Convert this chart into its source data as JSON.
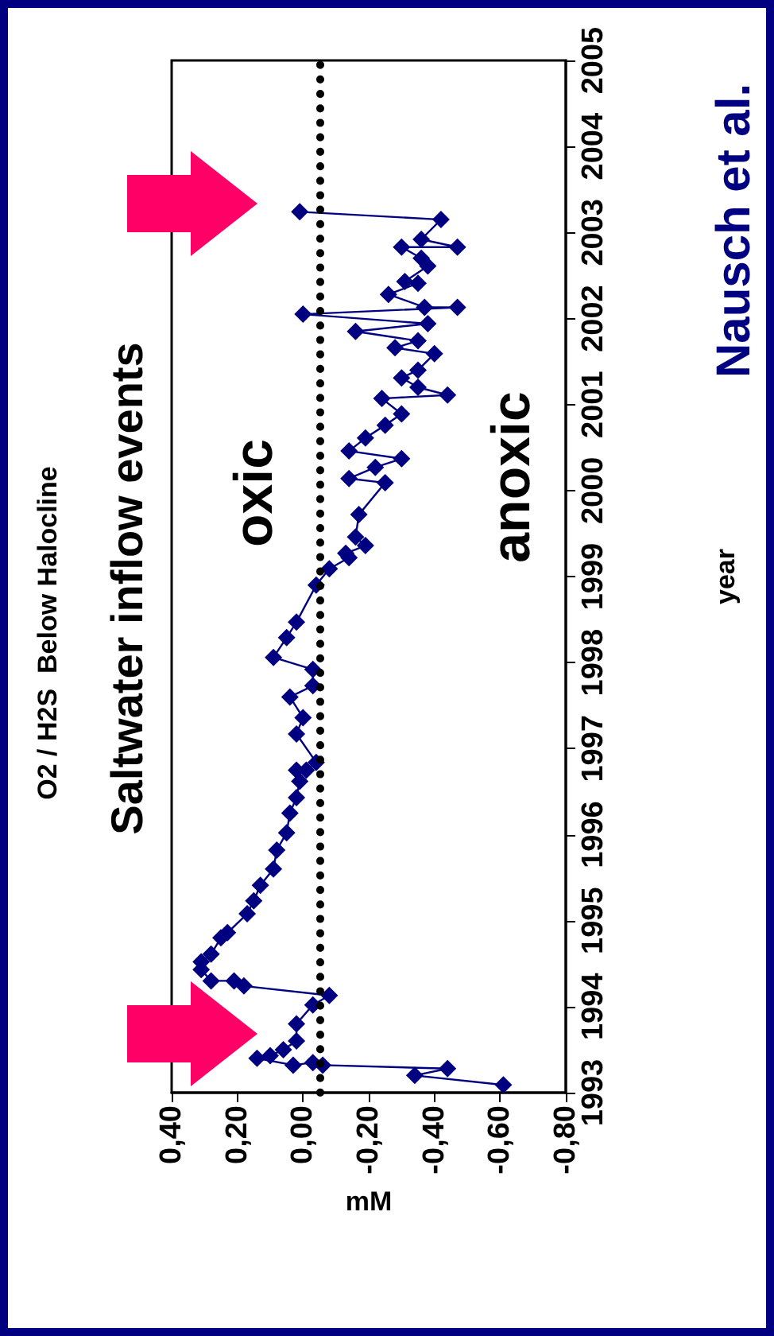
{
  "chart_data": {
    "type": "line",
    "title": "O2 / H2S  Below Halocline",
    "xlabel": "mM",
    "ylabel": "year",
    "annotations": [
      "Saltwater inflow events",
      "oxic",
      "anoxic",
      "Nausch et al."
    ],
    "ylim": [
      1993,
      2005
    ],
    "yticks": [
      1993,
      1994,
      1995,
      1996,
      1997,
      1998,
      1999,
      2000,
      2001,
      2002,
      2003,
      2004,
      2005
    ],
    "xlim": [
      0.4,
      -0.8
    ],
    "xticks": [
      {
        "value": 0.4,
        "label": "0,40"
      },
      {
        "value": 0.2,
        "label": "0,20"
      },
      {
        "value": 0,
        "label": "0,00"
      },
      {
        "value": -0.2,
        "label": "-0,20"
      },
      {
        "value": -0.4,
        "label": "-0,40"
      },
      {
        "value": -0.6,
        "label": "-0,60"
      },
      {
        "value": -0.8,
        "label": "-0,80"
      }
    ],
    "marker": "diamond",
    "grid": false,
    "ref_lines": [
      {
        "axis": "x",
        "value": -0.05,
        "color": "#000000",
        "line_style": "dotted"
      }
    ],
    "series": [
      {
        "color": "#000080",
        "values": [
          1993.09,
          1993.2,
          1993.28,
          1993.32,
          1993.35,
          1993.32,
          1993.4,
          1993.43,
          1993.5,
          1993.6,
          1993.8,
          1994.02,
          1994.13,
          1994.24,
          1994.3,
          1994.3,
          1994.43,
          1994.52,
          1994.61,
          1994.8,
          1994.86,
          1995.08,
          1995.23,
          1995.41,
          1995.6,
          1995.82,
          1996.02,
          1996.25,
          1996.43,
          1996.62,
          1996.75,
          1996.75,
          1996.84,
          1997.17,
          1997.36,
          1997.6,
          1997.73,
          1997.92,
          1998.06,
          1998.29,
          1998.47,
          1998.9,
          1999.09,
          1999.22,
          1999.27,
          1999.36,
          1999.46,
          1999.72,
          2000.09,
          2000.14,
          2000.27,
          2000.37,
          2000.46,
          2000.61,
          2000.76,
          2000.89,
          2001.07,
          2001.11,
          2001.2,
          2001.31,
          2001.4,
          2001.59,
          2001.66,
          2001.74,
          2001.85,
          2001.94,
          2002.05,
          2002.13,
          2002.13,
          2002.28,
          2002.41,
          2002.43,
          2002.61,
          2002.7,
          2002.83,
          2002.83,
          2002.92,
          2003.15,
          2003.24
        ],
        "x": [
          -0.61,
          -0.34,
          -0.44,
          -0.06,
          -0.03,
          0.03,
          0.14,
          0.1,
          0.06,
          0.02,
          0.02,
          -0.03,
          -0.08,
          0.18,
          0.21,
          0.28,
          0.31,
          0.31,
          0.28,
          0.25,
          0.23,
          0.17,
          0.15,
          0.13,
          0.09,
          0.08,
          0.05,
          0.04,
          0.02,
          0.01,
          0.02,
          -0.01,
          -0.04,
          0.02,
          0.0,
          0.04,
          -0.03,
          -0.03,
          0.09,
          0.05,
          0.02,
          -0.04,
          -0.08,
          -0.14,
          -0.13,
          -0.19,
          -0.16,
          -0.17,
          -0.25,
          -0.14,
          -0.22,
          -0.3,
          -0.14,
          -0.19,
          -0.25,
          -0.3,
          -0.24,
          -0.44,
          -0.35,
          -0.3,
          -0.35,
          -0.4,
          -0.28,
          -0.35,
          -0.16,
          -0.38,
          0.0,
          -0.47,
          -0.37,
          -0.26,
          -0.35,
          -0.31,
          -0.38,
          -0.36,
          -0.3,
          -0.47,
          -0.36,
          -0.42,
          0.01
        ]
      }
    ]
  }
}
